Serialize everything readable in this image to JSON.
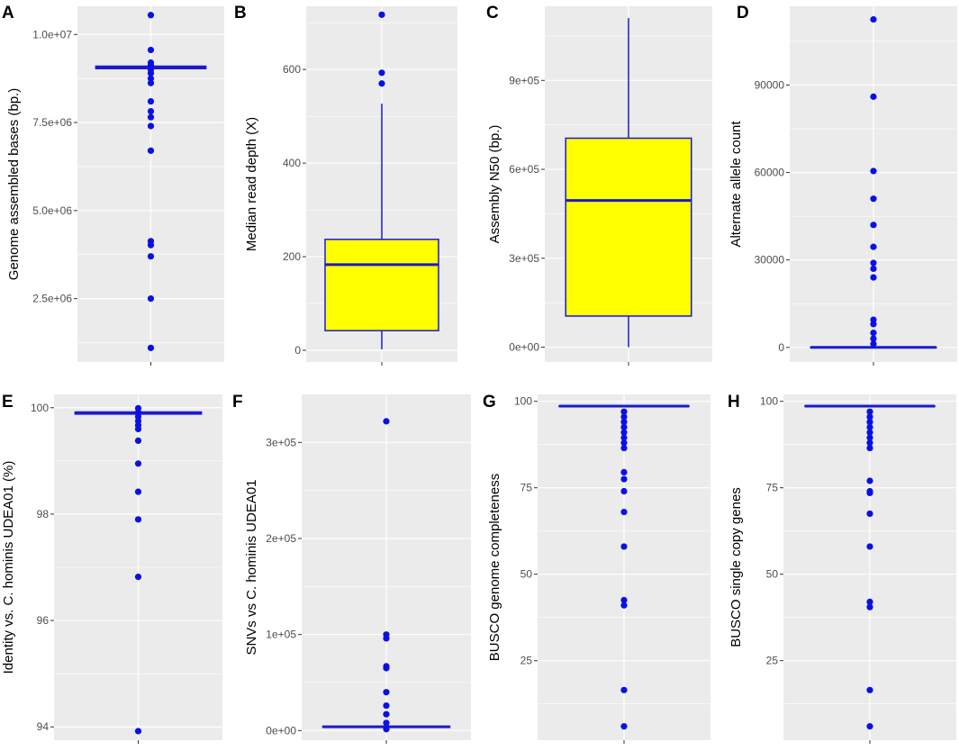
{
  "figure": {
    "description_colors": {
      "panel_background": "#ebebeb",
      "gridline": "#ffffff",
      "point": "#0a10e6",
      "box_fill": "#ffff00",
      "box_line": "#1a1ad0",
      "tick_text": "#4d4d4d"
    }
  },
  "chart_data": [
    {
      "panel": "A",
      "type": "box",
      "ylabel": "Genome assembled bases (bp.)",
      "ylim": [
        700000,
        10800000
      ],
      "major_ticks": [
        2500000,
        5000000,
        7500000,
        10000000
      ],
      "tick_labels": [
        "2.5e+06",
        "5.0e+06",
        "7.5e+06",
        "1.0e+07"
      ],
      "box": {
        "q1": 9030000,
        "median": 9060000,
        "q3": 9100000,
        "whisker_low": 9030000,
        "whisker_high": 9100000
      },
      "outliers": [
        10550000,
        9560000,
        9200000,
        9120000,
        9000000,
        8900000,
        8750000,
        8620000,
        8100000,
        7820000,
        7650000,
        7400000,
        6700000,
        4130000,
        4020000,
        3700000,
        2500000,
        1100000
      ]
    },
    {
      "panel": "B",
      "type": "box",
      "ylabel": "Median read depth (X)",
      "ylim": [
        -25,
        735
      ],
      "major_ticks": [
        0,
        200,
        400,
        600
      ],
      "tick_labels": [
        "0",
        "200",
        "400",
        "600"
      ],
      "box": {
        "q1": 42,
        "median": 183,
        "q3": 237,
        "whisker_low": 2,
        "whisker_high": 527
      },
      "outliers": [
        570,
        593,
        717
      ]
    },
    {
      "panel": "C",
      "type": "box",
      "ylabel": "Assembly N50 (bp.)",
      "ylim": [
        -50000,
        1150000
      ],
      "major_ticks": [
        0,
        300000,
        600000,
        900000
      ],
      "tick_labels": [
        "0e+00",
        "3e+05",
        "6e+05",
        "9e+05"
      ],
      "box": {
        "q1": 105000,
        "median": 495000,
        "q3": 705000,
        "whisker_low": 0,
        "whisker_high": 1110000
      },
      "outliers": []
    },
    {
      "panel": "D",
      "type": "box",
      "ylabel": "Alternate allele count",
      "ylim": [
        -5000,
        117000
      ],
      "major_ticks": [
        0,
        30000,
        60000,
        90000
      ],
      "tick_labels": [
        "0",
        "30000",
        "60000",
        "90000"
      ],
      "box": {
        "q1": 0,
        "median": 0,
        "q3": 50,
        "whisker_low": 0,
        "whisker_high": 100
      },
      "outliers": [
        112500,
        86000,
        60500,
        51000,
        42000,
        34500,
        29000,
        27000,
        24000,
        9500,
        8000,
        5000,
        3000,
        1200
      ]
    },
    {
      "panel": "E",
      "type": "box",
      "ylabel": "Identity vs. C. hominis UDEA01 (%)",
      "ylim": [
        93.75,
        100.25
      ],
      "major_ticks": [
        94,
        96,
        98,
        100
      ],
      "tick_labels": [
        "94",
        "96",
        "98",
        "100"
      ],
      "box": {
        "q1": 99.88,
        "median": 99.9,
        "q3": 99.92,
        "whisker_low": 99.86,
        "whisker_high": 99.95
      },
      "outliers": [
        99.99,
        99.91,
        99.83,
        99.75,
        99.67,
        99.6,
        99.38,
        98.95,
        98.42,
        97.9,
        96.82,
        93.92
      ]
    },
    {
      "panel": "F",
      "type": "box",
      "ylabel": "SNVs vs C. hominis UDEA01",
      "ylim": [
        -10000,
        350000
      ],
      "major_ticks": [
        0,
        100000,
        200000,
        300000
      ],
      "tick_labels": [
        "0e+00",
        "1e+05",
        "2e+05",
        "3e+05"
      ],
      "box": {
        "q1": 3500,
        "median": 4000,
        "q3": 4500,
        "whisker_low": 3000,
        "whisker_high": 5000
      },
      "outliers": [
        322000,
        100000,
        96000,
        67000,
        65000,
        40000,
        26000,
        17000,
        8000,
        3000,
        1500
      ]
    },
    {
      "panel": "G",
      "type": "box",
      "ylabel": "BUSCO genome completeness",
      "ylim": [
        2,
        102
      ],
      "major_ticks": [
        25,
        50,
        75,
        100
      ],
      "tick_labels": [
        "25",
        "50",
        "75",
        "100"
      ],
      "box": {
        "q1": 98.5,
        "median": 98.6,
        "q3": 98.7,
        "whisker_low": 98.4,
        "whisker_high": 98.8
      },
      "outliers": [
        97,
        95.5,
        94,
        92.5,
        91,
        89.5,
        88,
        86.5,
        79.5,
        77.5,
        74,
        68,
        58,
        42.5,
        41,
        16.5,
        6
      ]
    },
    {
      "panel": "H",
      "type": "box",
      "ylabel": "BUSCO single copy genes",
      "ylim": [
        2,
        102
      ],
      "major_ticks": [
        25,
        50,
        75,
        100
      ],
      "tick_labels": [
        "25",
        "50",
        "75",
        "100"
      ],
      "box": {
        "q1": 98.5,
        "median": 98.6,
        "q3": 98.7,
        "whisker_low": 98.4,
        "whisker_high": 98.8
      },
      "outliers": [
        97,
        95.5,
        94,
        92.5,
        91,
        89.5,
        88,
        86.5,
        77,
        74,
        73.5,
        67.5,
        58,
        42,
        40.5,
        16.5,
        6
      ]
    }
  ]
}
